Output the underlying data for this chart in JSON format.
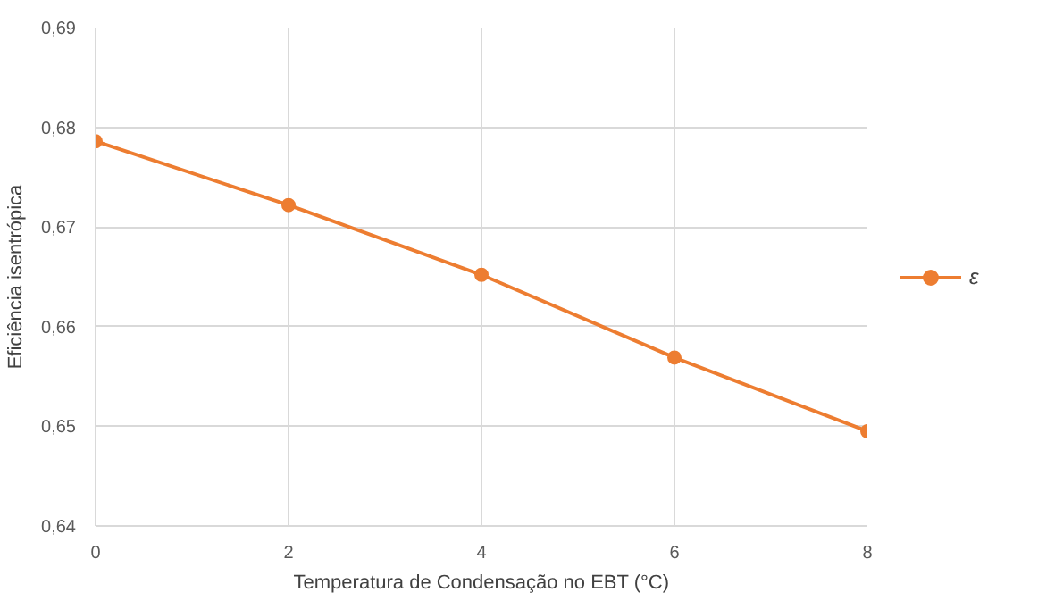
{
  "chart_data": {
    "type": "line",
    "xlabel": "Temperatura de Condensação no EBT (°C)",
    "ylabel": "Eficiência isentrópica",
    "x": [
      0,
      2,
      4,
      6,
      8
    ],
    "series": [
      {
        "name": "ε",
        "color": "#ed7d31",
        "values": [
          0.6786,
          0.6722,
          0.6652,
          0.6569,
          0.6495
        ]
      }
    ],
    "xlim": [
      0,
      8
    ],
    "xticks": [
      0,
      2,
      4,
      6,
      8
    ],
    "ylim": [
      0.64,
      0.69
    ],
    "yticks": [
      {
        "value": 0.64,
        "label": "0,64"
      },
      {
        "value": 0.65,
        "label": "0,65"
      },
      {
        "value": 0.66,
        "label": "0,66"
      },
      {
        "value": 0.67,
        "label": "0,67"
      },
      {
        "value": 0.68,
        "label": "0,68"
      },
      {
        "value": 0.69,
        "label": "0,69"
      }
    ],
    "grid": true,
    "legend": "right",
    "marker": "circle",
    "line_style": "solid"
  }
}
